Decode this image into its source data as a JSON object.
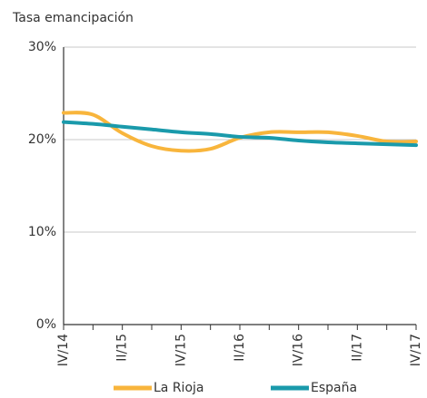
{
  "chart_data": {
    "type": "line",
    "y_label": "Tasa emancipación",
    "categories": [
      "IV/14",
      null,
      "II/15",
      null,
      "IV/15",
      null,
      "II/16",
      null,
      "IV/16",
      null,
      "II/17",
      null,
      "IV/17"
    ],
    "series": [
      {
        "name": "La Rioja",
        "color": "#f8b53c",
        "values": [
          22.9,
          22.7,
          20.7,
          19.3,
          18.8,
          19.0,
          20.2,
          20.8,
          20.8,
          20.8,
          20.4,
          19.8,
          19.8
        ]
      },
      {
        "name": "España",
        "color": "#1a9aab",
        "values": [
          21.9,
          21.7,
          21.4,
          21.1,
          20.8,
          20.6,
          20.3,
          20.2,
          19.9,
          19.7,
          19.6,
          19.5,
          19.4
        ]
      }
    ],
    "ylim": [
      0,
      30
    ],
    "yticks": [
      {
        "value": 0,
        "label": "0%"
      },
      {
        "value": 10,
        "label": "10%"
      },
      {
        "value": 20,
        "label": "20%"
      },
      {
        "value": 30,
        "label": "30%"
      }
    ],
    "grid": true,
    "legend": "bottom"
  }
}
